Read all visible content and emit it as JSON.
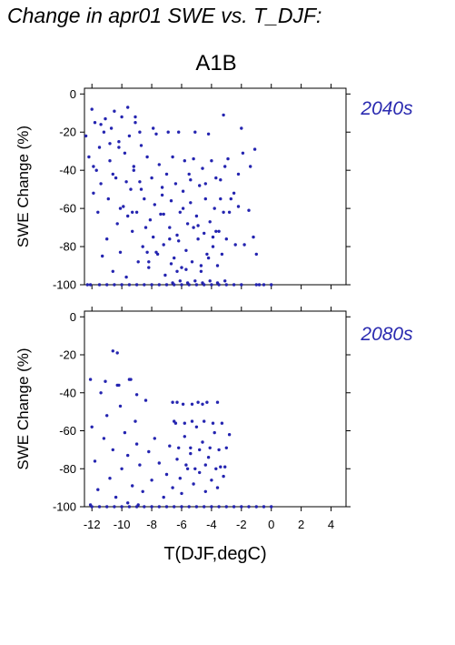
{
  "title": "Change in apr01 SWE vs. T_DJF:",
  "scenario": "A1B",
  "colors": {
    "points": "#2424b0",
    "period_label": "#2a2ab0",
    "axes": "#000000"
  },
  "chart_data": [
    {
      "type": "scatter",
      "panel": "2040s",
      "xlabel": "T(DJF,degC)",
      "ylabel": "SWE Change (%)",
      "xlim": [
        -12.5,
        5
      ],
      "ylim": [
        -100,
        3
      ],
      "xticks": [
        -12,
        -10,
        -8,
        -6,
        -4,
        -2,
        0,
        2,
        4
      ],
      "yticks": [
        -100,
        -80,
        -60,
        -40,
        -20,
        0
      ],
      "x": [
        -12.4,
        -12.2,
        -12.0,
        -11.9,
        -11.8,
        -11.7,
        -11.6,
        -11.5,
        -11.4,
        -11.3,
        -11.2,
        -11.1,
        -11.0,
        -10.9,
        -10.8,
        -10.7,
        -10.6,
        -10.5,
        -10.4,
        -10.3,
        -10.2,
        -10.1,
        -10.0,
        -9.9,
        -9.8,
        -9.7,
        -9.6,
        -9.5,
        -9.4,
        -9.3,
        -9.2,
        -9.1,
        -9.0,
        -8.9,
        -8.8,
        -8.7,
        -8.6,
        -8.5,
        -8.4,
        -8.3,
        -8.2,
        -8.1,
        -8.0,
        -7.9,
        -7.8,
        -7.7,
        -7.6,
        -7.5,
        -7.4,
        -7.3,
        -7.2,
        -7.1,
        -7.0,
        -6.9,
        -6.8,
        -6.7,
        -6.6,
        -6.5,
        -6.4,
        -6.3,
        -6.2,
        -6.1,
        -6.0,
        -5.9,
        -5.8,
        -5.7,
        -5.6,
        -5.5,
        -5.4,
        -5.3,
        -5.2,
        -5.1,
        -5.0,
        -4.9,
        -4.8,
        -4.7,
        -4.6,
        -4.5,
        -4.4,
        -4.3,
        -4.2,
        -4.1,
        -4.0,
        -3.9,
        -3.8,
        -3.7,
        -3.6,
        -3.5,
        -3.4,
        -3.3,
        -3.2,
        -3.1,
        -3.0,
        -2.8,
        -2.5,
        -2.2,
        -2.0,
        -1.8,
        -1.5,
        -1.2,
        -1.0,
        -0.8,
        -0.5,
        -12.1,
        -11.5,
        -11.0,
        -10.5,
        -10.0,
        -9.5,
        -9.0,
        -8.5,
        -8.0,
        -7.5,
        -7.0,
        -6.5,
        -6.0,
        -5.5,
        -5.0,
        -4.5,
        -4.0,
        -3.5,
        -3.0,
        -2.5,
        -2.0,
        -1.0,
        0.0,
        -12.3,
        -11.9,
        -11.4,
        -10.8,
        -10.2,
        -9.7,
        -9.3,
        -9.1,
        -8.8,
        -8.3,
        -7.9,
        -7.3,
        -6.8,
        -6.3,
        -5.9,
        -5.4,
        -4.9,
        -4.4,
        -3.9,
        -3.4,
        -2.9,
        -2.4,
        -1.9,
        -10.6,
        -10.1,
        -9.6,
        -9.2,
        -8.7,
        -8.2,
        -7.7,
        -7.2,
        -6.7,
        -6.2,
        -5.7,
        -5.2,
        -4.7,
        -4.2,
        -3.7,
        -3.2,
        -2.7,
        -2.2,
        -1.4,
        -1.1,
        -6.6,
        -6.1,
        -5.6,
        -5.1,
        -4.6,
        -4.1,
        -3.6,
        -3.1
      ],
      "y": [
        -22,
        -33,
        -8,
        -52,
        -15,
        -40,
        -62,
        -28,
        -47,
        -85,
        -20,
        -13,
        -76,
        -55,
        -35,
        -18,
        -93,
        -9,
        -44,
        -68,
        -25,
        -83,
        -12,
        -59,
        -31,
        -96,
        -7,
        -22,
        -50,
        -72,
        -38,
        -15,
        -62,
        -88,
        -46,
        -27,
        -80,
        -55,
        -70,
        -33,
        -91,
        -66,
        -44,
        -75,
        -58,
        -21,
        -84,
        -37,
        -63,
        -49,
        -79,
        -95,
        -42,
        -20,
        -70,
        -56,
        -33,
        -86,
        -47,
        -74,
        -20,
        -62,
        -91,
        -51,
        -35,
        -82,
        -68,
        -42,
        -57,
        -88,
        -34,
        -20,
        -64,
        -76,
        -48,
        -90,
        -39,
        -73,
        -55,
        -84,
        -21,
        -67,
        -35,
        -80,
        -60,
        -44,
        -90,
        -72,
        -55,
        -84,
        -11,
        -38,
        -76,
        -62,
        -52,
        -42,
        -18,
        -79,
        -61,
        -75,
        -84,
        -100,
        -100,
        -100,
        -100,
        -100,
        -100,
        -100,
        -100,
        -100,
        -100,
        -100,
        -100,
        -100,
        -100,
        -100,
        -100,
        -100,
        -100,
        -100,
        -100,
        -100,
        -100,
        -100,
        -100,
        -100,
        -100,
        -38,
        -16,
        -26,
        -28,
        -46,
        -62,
        -12,
        -20,
        -83,
        -18,
        -53,
        -76,
        -93,
        -60,
        -45,
        -69,
        -47,
        -75,
        -45,
        -34,
        -79,
        -31,
        -42,
        -60,
        -64,
        -40,
        -50,
        -88,
        -83,
        -63,
        -89,
        -77,
        -92,
        -70,
        -93,
        -86,
        -72,
        -62,
        -55,
        -59,
        -38,
        -29,
        -99,
        -98,
        -99,
        -98,
        -99,
        -98,
        -99,
        -98
      ]
    },
    {
      "type": "scatter",
      "panel": "2080s",
      "xlabel": "T(DJF,degC)",
      "ylabel": "SWE Change (%)",
      "xlim": [
        -12.5,
        5
      ],
      "ylim": [
        -100,
        3
      ],
      "xticks": [
        -12,
        -10,
        -8,
        -6,
        -4,
        -2,
        0,
        2,
        4
      ],
      "xtick_labels": [
        "-12",
        "-10",
        "-8",
        "-6",
        "-4",
        "-2",
        "0",
        "2",
        "4"
      ],
      "yticks": [
        -100,
        -80,
        -60,
        -40,
        -20,
        0
      ],
      "x": [
        -12.1,
        -12.0,
        -11.8,
        -11.6,
        -11.4,
        -11.2,
        -11.0,
        -10.8,
        -10.6,
        -10.4,
        -10.3,
        -10.1,
        -10.0,
        -9.8,
        -9.6,
        -9.5,
        -9.3,
        -9.1,
        -9.0,
        -8.8,
        -8.6,
        -8.4,
        -8.2,
        -8.0,
        -7.8,
        -7.5,
        -7.2,
        -7.0,
        -6.8,
        -6.6,
        -6.5,
        -6.3,
        -6.1,
        -6.0,
        -5.8,
        -5.6,
        -5.4,
        -5.2,
        -5.0,
        -4.8,
        -4.6,
        -4.4,
        -4.2,
        -4.0,
        -3.8,
        -3.6,
        -3.4,
        -3.2,
        -3.0,
        -2.8,
        -12.0,
        -11.5,
        -11.0,
        -10.5,
        -10.0,
        -9.5,
        -9.0,
        -8.5,
        -8.0,
        -7.5,
        -7.0,
        -6.5,
        -6.0,
        -5.5,
        -5.0,
        -4.5,
        -4.0,
        -3.5,
        -3.0,
        -2.5,
        -2.0,
        -1.5,
        -1.0,
        -0.5,
        0.0,
        -10.6,
        -10.3,
        -11.1,
        -10.2,
        -9.4,
        -9.0,
        -12.1,
        -9.6,
        -8.9,
        -6.6,
        -6.3,
        -5.9,
        -5.3,
        -4.9,
        -4.6,
        -4.3,
        -3.6,
        -6.4,
        -5.8,
        -5.3,
        -4.5,
        -3.9,
        -3.3,
        -6.2,
        -5.4,
        -4.8,
        -4.1,
        -3.5,
        -5.7,
        -5.1,
        -4.4,
        -3.7,
        -3.1
      ],
      "y": [
        -33,
        -58,
        -76,
        -91,
        -40,
        -64,
        -52,
        -85,
        -70,
        -95,
        -36,
        -47,
        -80,
        -61,
        -73,
        -33,
        -89,
        -55,
        -67,
        -78,
        -92,
        -44,
        -71,
        -86,
        -64,
        -77,
        -95,
        -83,
        -68,
        -90,
        -55,
        -75,
        -85,
        -93,
        -63,
        -80,
        -72,
        -88,
        -58,
        -82,
        -66,
        -92,
        -74,
        -86,
        -61,
        -90,
        -79,
        -84,
        -69,
        -62,
        -100,
        -100,
        -100,
        -100,
        -100,
        -100,
        -100,
        -100,
        -100,
        -100,
        -100,
        -100,
        -100,
        -100,
        -100,
        -100,
        -100,
        -100,
        -100,
        -100,
        -100,
        -100,
        -100,
        -100,
        -100,
        -18,
        -19,
        -34,
        -36,
        -33,
        -41,
        -99,
        -98,
        -99,
        -45,
        -45,
        -46,
        -46,
        -45,
        -46,
        -45,
        -45,
        -56,
        -56,
        -55,
        -55,
        -56,
        -56,
        -69,
        -69,
        -70,
        -69,
        -70,
        -78,
        -80,
        -78,
        -80,
        -79
      ]
    }
  ]
}
